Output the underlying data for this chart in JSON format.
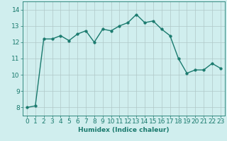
{
  "x": [
    0,
    1,
    2,
    3,
    4,
    5,
    6,
    7,
    8,
    9,
    10,
    11,
    12,
    13,
    14,
    15,
    16,
    17,
    18,
    19,
    20,
    21,
    22,
    23
  ],
  "y": [
    8.0,
    8.1,
    12.2,
    12.2,
    12.4,
    12.1,
    12.5,
    12.7,
    12.0,
    12.8,
    12.7,
    13.0,
    13.2,
    13.7,
    13.2,
    13.3,
    12.8,
    12.4,
    11.0,
    10.1,
    10.3,
    10.3,
    10.7,
    10.4
  ],
  "line_color": "#1a7a6e",
  "bg_color": "#d0eeee",
  "grid_color": "#b0c8c8",
  "xlabel": "Humidex (Indice chaleur)",
  "ylim": [
    7.5,
    14.5
  ],
  "xlim": [
    -0.5,
    23.5
  ],
  "yticks": [
    8,
    9,
    10,
    11,
    12,
    13,
    14
  ],
  "xticks": [
    0,
    1,
    2,
    3,
    4,
    5,
    6,
    7,
    8,
    9,
    10,
    11,
    12,
    13,
    14,
    15,
    16,
    17,
    18,
    19,
    20,
    21,
    22,
    23
  ],
  "xlabel_fontsize": 6.5,
  "tick_fontsize": 6.5,
  "line_width": 1.0,
  "marker_size": 2.5
}
